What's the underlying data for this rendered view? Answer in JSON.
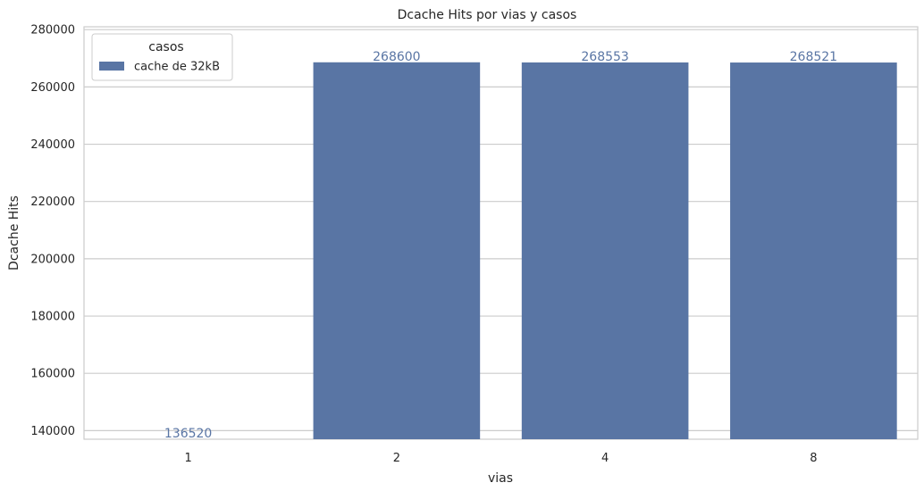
{
  "chart_data": {
    "type": "bar",
    "title": "Dcache Hits por vias y casos",
    "xlabel": "vias",
    "ylabel": "Dcache Hits",
    "categories": [
      "1",
      "2",
      "4",
      "8"
    ],
    "series": [
      {
        "name": "cache de 32kB",
        "values": [
          136520,
          268600,
          268553,
          268521
        ],
        "color": "#5975a4"
      }
    ],
    "data_labels": [
      "136520",
      "268600",
      "268553",
      "268521"
    ],
    "ylim": [
      137000,
      281000
    ],
    "yticks": [
      140000,
      160000,
      180000,
      200000,
      220000,
      240000,
      260000,
      280000
    ],
    "ytick_labels": [
      "140000",
      "160000",
      "180000",
      "200000",
      "220000",
      "240000",
      "260000",
      "280000"
    ],
    "grid": true,
    "legend": {
      "title": "casos",
      "placement": "top-left"
    }
  }
}
